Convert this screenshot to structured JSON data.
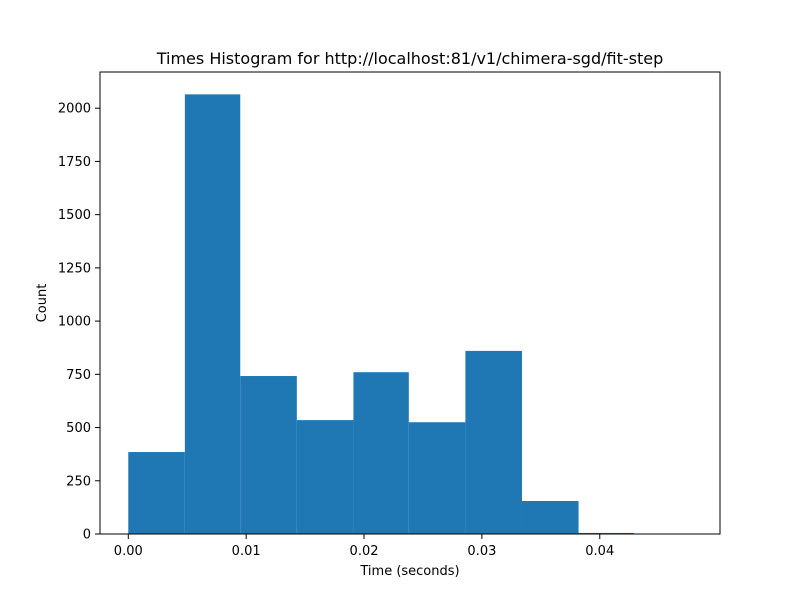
{
  "chart_data": {
    "type": "bar",
    "title": "Times Histogram for http://localhost:81/v1/chimera-sgd/fit-step",
    "xlabel": "Time (seconds)",
    "ylabel": "Count",
    "xlim": [
      -0.0024,
      0.0502
    ],
    "ylim": [
      0,
      2170
    ],
    "xticks": [
      {
        "value": 0.0,
        "label": "0.00"
      },
      {
        "value": 0.01,
        "label": "0.01"
      },
      {
        "value": 0.02,
        "label": "0.02"
      },
      {
        "value": 0.03,
        "label": "0.03"
      },
      {
        "value": 0.04,
        "label": "0.04"
      }
    ],
    "yticks": [
      {
        "value": 0,
        "label": "0"
      },
      {
        "value": 250,
        "label": "250"
      },
      {
        "value": 500,
        "label": "500"
      },
      {
        "value": 750,
        "label": "750"
      },
      {
        "value": 1000,
        "label": "1000"
      },
      {
        "value": 1250,
        "label": "1250"
      },
      {
        "value": 1500,
        "label": "1500"
      },
      {
        "value": 1750,
        "label": "1750"
      },
      {
        "value": 2000,
        "label": "2000"
      }
    ],
    "bins": [
      {
        "start": 0.0,
        "end": 0.0048,
        "count": 385
      },
      {
        "start": 0.0048,
        "end": 0.0095,
        "count": 2065
      },
      {
        "start": 0.0095,
        "end": 0.0143,
        "count": 742
      },
      {
        "start": 0.0143,
        "end": 0.0191,
        "count": 535
      },
      {
        "start": 0.0191,
        "end": 0.0238,
        "count": 760
      },
      {
        "start": 0.0238,
        "end": 0.0286,
        "count": 525
      },
      {
        "start": 0.0286,
        "end": 0.0334,
        "count": 860
      },
      {
        "start": 0.0334,
        "end": 0.0382,
        "count": 155
      },
      {
        "start": 0.0382,
        "end": 0.0429,
        "count": 5
      },
      {
        "start": 0.0429,
        "end": 0.0477,
        "count": 0
      }
    ],
    "bar_color": "#1f77b4",
    "grid": false,
    "legend": "none"
  }
}
